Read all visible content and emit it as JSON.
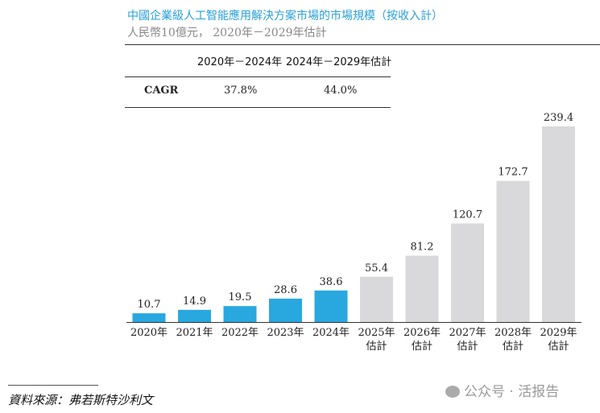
{
  "chart_data": {
    "type": "bar",
    "title": "中國企業級人工智能應用解決方案市場的市場規模（按收入計）",
    "subtitle": "人民幣10億元， 2020年－2029年估計",
    "categories": [
      "2020年",
      "2021年",
      "2022年",
      "2023年",
      "2024年",
      "2025年\n估計",
      "2026年\n估計",
      "2027年\n估計",
      "2028年\n估計",
      "2029年\n估計"
    ],
    "values": [
      10.7,
      14.9,
      19.5,
      28.6,
      38.6,
      55.4,
      81.2,
      120.7,
      172.7,
      239.4
    ],
    "labels": [
      "10.7",
      "14.9",
      "19.5",
      "28.6",
      "38.6",
      "55.4",
      "81.2",
      "120.7",
      "172.7",
      "239.4"
    ],
    "colors": {
      "actual": "#29a8e0",
      "estimate": "#d9d9db"
    },
    "estimate_from_index": 5,
    "ylim": [
      0,
      239.4
    ],
    "grid": false
  },
  "cagr_table": {
    "headers": [
      "2020年－2024年",
      "2024年－2029年估計"
    ],
    "row_label": "CAGR",
    "values": [
      "37.8%",
      "44.0%"
    ]
  },
  "source": "資料來源：弗若斯特沙利文",
  "watermark": "公众号 · 活报告"
}
